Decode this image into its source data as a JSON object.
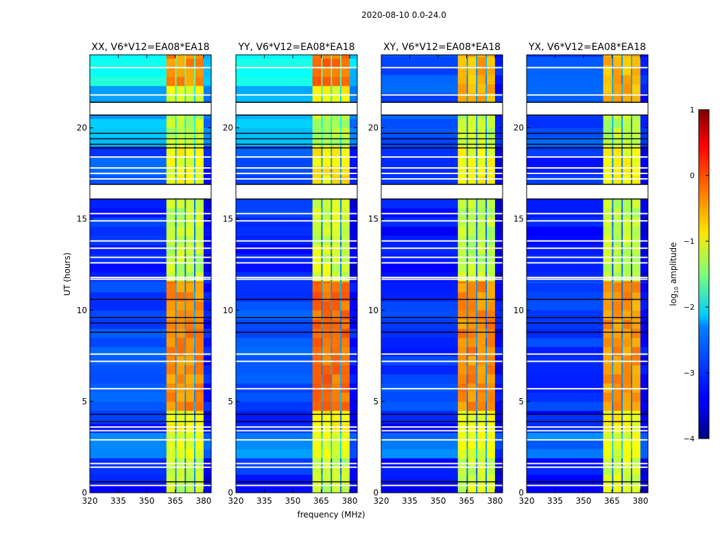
{
  "chart_data": {
    "type": "heatmap",
    "title": "2020-08-10 0.0-24.0",
    "xlabel": "frequency (MHz)",
    "ylabel": "UT (hours)",
    "xlim": [
      320,
      384
    ],
    "ylim": [
      0,
      24
    ],
    "xticks": [
      "320",
      "335",
      "350",
      "365",
      "380"
    ],
    "xtick_values": [
      320,
      335,
      350,
      365,
      380
    ],
    "yticks": [
      "0",
      "5",
      "10",
      "15",
      "20"
    ],
    "ytick_values": [
      0,
      5,
      10,
      15,
      20
    ],
    "colorbar": {
      "label_main": "log",
      "label_sub": "10",
      "label_rest": " amplitude",
      "range": [
        -4,
        1
      ],
      "ticks": [
        "1",
        "0",
        "−1",
        "−2",
        "−3",
        "−4"
      ],
      "tick_values": [
        1,
        0,
        -1,
        -2,
        -3,
        -4
      ],
      "colormap": "jet"
    },
    "freq_bands": [
      {
        "from": 320,
        "to": 360.4,
        "kind": "bg"
      },
      {
        "from": 360.4,
        "to": 365,
        "kind": "rfi"
      },
      {
        "from": 365,
        "to": 365.7,
        "kind": "notch"
      },
      {
        "from": 365.7,
        "to": 370,
        "kind": "rfi"
      },
      {
        "from": 370,
        "to": 370.7,
        "kind": "notch"
      },
      {
        "from": 370.7,
        "to": 375,
        "kind": "rfi"
      },
      {
        "from": 375,
        "to": 375.7,
        "kind": "notch"
      },
      {
        "from": 375.7,
        "to": 380,
        "kind": "rfi"
      },
      {
        "from": 380,
        "to": 384,
        "kind": "edge"
      }
    ],
    "flagged_gaps": [
      [
        16.1,
        16.9
      ],
      [
        20.7,
        21.4
      ]
    ],
    "flagged_lines": [
      23.3,
      21.8,
      18.4,
      17.8,
      17.5,
      17.2,
      15.3,
      14.9,
      13.8,
      13.4,
      12.9,
      12.6,
      11.8,
      11.7,
      7.6,
      7.2,
      5.7,
      3.6,
      3.4,
      2.9,
      1.6,
      1.4,
      0.4
    ],
    "zero_lines": [
      19.7,
      19.4,
      19.1,
      18.9,
      10.6,
      9.6,
      9.3,
      8.8,
      4.3,
      3.9,
      0.6
    ],
    "panels": [
      {
        "title": "XX, V6*V12=EA08*EA18",
        "segments": [
          {
            "from": 0,
            "to": 1.9,
            "bg": -3.2,
            "rfi": -1.2
          },
          {
            "from": 1.9,
            "to": 3.3,
            "bg": -2.7,
            "rfi": -1.0
          },
          {
            "from": 3.3,
            "to": 4.5,
            "bg": -3.2,
            "rfi": -0.9
          },
          {
            "from": 4.5,
            "to": 11.6,
            "bg": -3.0,
            "rfi": -0.3
          },
          {
            "from": 11.6,
            "to": 16.1,
            "bg": -3.2,
            "rfi": -1.2
          },
          {
            "from": 16.9,
            "to": 19.0,
            "bg": -3.0,
            "rfi": -0.9
          },
          {
            "from": 19.0,
            "to": 20.7,
            "bg": -2.5,
            "rfi": -1.2
          },
          {
            "from": 21.4,
            "to": 22.3,
            "bg": -2.6,
            "rfi": -1.0
          },
          {
            "from": 22.3,
            "to": 24,
            "bg": -2.1,
            "rfi": -0.3
          }
        ]
      },
      {
        "title": "YY, V6*V12=EA08*EA18",
        "segments": [
          {
            "from": 0,
            "to": 1.9,
            "bg": -3.2,
            "rfi": -1.2
          },
          {
            "from": 1.9,
            "to": 3.3,
            "bg": -2.7,
            "rfi": -1.0
          },
          {
            "from": 3.3,
            "to": 4.5,
            "bg": -3.2,
            "rfi": -0.8
          },
          {
            "from": 4.5,
            "to": 11.6,
            "bg": -3.0,
            "rfi": -0.15
          },
          {
            "from": 11.6,
            "to": 16.1,
            "bg": -3.2,
            "rfi": -1.1
          },
          {
            "from": 16.9,
            "to": 19.0,
            "bg": -3.0,
            "rfi": -0.8
          },
          {
            "from": 19.0,
            "to": 20.7,
            "bg": -2.5,
            "rfi": -1.2
          },
          {
            "from": 21.4,
            "to": 22.3,
            "bg": -2.6,
            "rfi": -0.9
          },
          {
            "from": 22.3,
            "to": 24,
            "bg": -2.1,
            "rfi": -0.15
          }
        ]
      },
      {
        "title": "XY, V6*V12=EA08*EA18",
        "segments": [
          {
            "from": 0,
            "to": 1.9,
            "bg": -3.3,
            "rfi": -1.1
          },
          {
            "from": 1.9,
            "to": 3.3,
            "bg": -2.8,
            "rfi": -1.0
          },
          {
            "from": 3.3,
            "to": 4.5,
            "bg": -3.3,
            "rfi": -0.9
          },
          {
            "from": 4.5,
            "to": 11.6,
            "bg": -3.1,
            "rfi": -0.3
          },
          {
            "from": 11.6,
            "to": 16.1,
            "bg": -3.3,
            "rfi": -1.2
          },
          {
            "from": 16.9,
            "to": 19.0,
            "bg": -3.2,
            "rfi": -0.9
          },
          {
            "from": 19.0,
            "to": 20.7,
            "bg": -3.0,
            "rfi": -1.2
          },
          {
            "from": 21.4,
            "to": 24,
            "bg": -3.0,
            "rfi": -0.5
          }
        ]
      },
      {
        "title": "YX, V6*V12=EA08*EA18",
        "segments": [
          {
            "from": 0,
            "to": 1.9,
            "bg": -3.3,
            "rfi": -1.1
          },
          {
            "from": 1.9,
            "to": 3.3,
            "bg": -2.8,
            "rfi": -1.0
          },
          {
            "from": 3.3,
            "to": 4.5,
            "bg": -3.3,
            "rfi": -0.9
          },
          {
            "from": 4.5,
            "to": 11.6,
            "bg": -3.1,
            "rfi": -0.35
          },
          {
            "from": 11.6,
            "to": 16.1,
            "bg": -3.3,
            "rfi": -1.2
          },
          {
            "from": 16.9,
            "to": 19.0,
            "bg": -3.2,
            "rfi": -0.9
          },
          {
            "from": 19.0,
            "to": 20.7,
            "bg": -3.0,
            "rfi": -1.2
          },
          {
            "from": 21.4,
            "to": 24,
            "bg": -3.0,
            "rfi": -0.5
          }
        ]
      }
    ]
  }
}
